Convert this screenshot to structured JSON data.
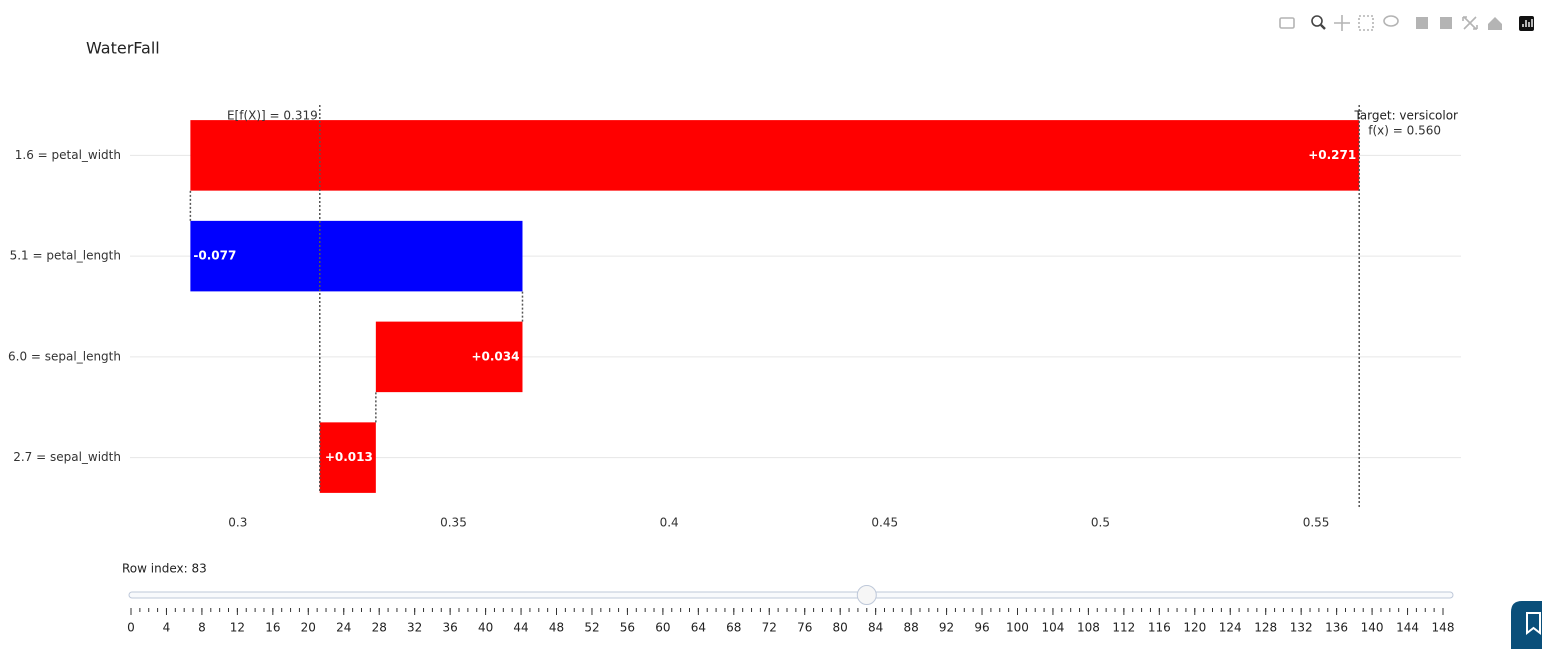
{
  "chart_data": {
    "type": "waterfall",
    "title": "WaterFall",
    "categories": [
      "2.7 = sepal_width",
      "6.0 = sepal_length",
      "5.1 = petal_length",
      "1.6 = petal_width"
    ],
    "values": [
      0.013,
      0.034,
      -0.077,
      0.271
    ],
    "value_labels": [
      "+0.013",
      "+0.034",
      "-0.077",
      "+0.271"
    ],
    "increasing_color": "#ff0000",
    "decreasing_color": "#0000ff",
    "base_value": 0.319,
    "base_label": "E[f(X)] = 0.319",
    "final_value": 0.56,
    "target_label": "Target: versicolor",
    "final_label": "f(x) = 0.560",
    "xlim": [
      0.275,
      0.5836
    ],
    "xticks": [
      0.3,
      0.35,
      0.4,
      0.45,
      0.5,
      0.55
    ],
    "grid": true
  },
  "slider": {
    "label": "Row index: 83",
    "value": 83,
    "range": [
      0,
      148
    ],
    "ticks": [
      0,
      4,
      8,
      12,
      16,
      20,
      24,
      28,
      32,
      36,
      40,
      44,
      48,
      52,
      56,
      60,
      64,
      68,
      72,
      76,
      80,
      84,
      88,
      92,
      96,
      100,
      104,
      108,
      112,
      116,
      120,
      124,
      128,
      132,
      136,
      140,
      144,
      148
    ]
  }
}
